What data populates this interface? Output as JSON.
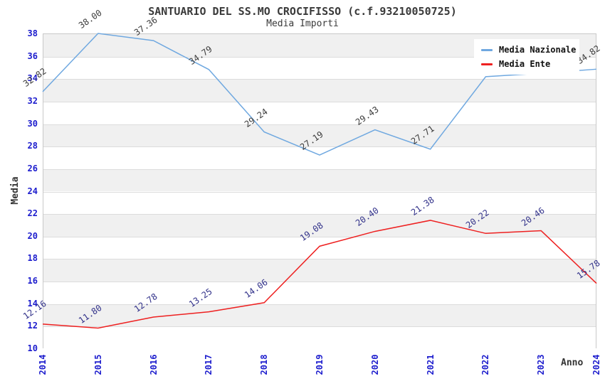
{
  "page": {
    "background": "#ffffff"
  },
  "chart_data": {
    "type": "line",
    "title": "SANTUARIO DEL SS.MO CROCIFISSO (c.f.93210050725)",
    "subtitle": "Media Importi",
    "xlabel": "Anno",
    "ylabel": "Media",
    "x_categories": [
      "2014",
      "2015",
      "2016",
      "2017",
      "2018",
      "2019",
      "2020",
      "2021",
      "2022",
      "2023",
      "2024"
    ],
    "ylim": [
      10,
      38
    ],
    "ytick_step": 2,
    "grid": true,
    "legend_position": "top-right",
    "colors": {
      "axis_tick_text": "#1c1ccd",
      "band_gray": "#f0f0f0",
      "band_white": "#ffffff",
      "gridline": "#dcdcdc",
      "plot_border": "#c9c9c9"
    },
    "series": [
      {
        "name": "Media Nazionale",
        "color": "#6fa8e0",
        "label_color": "#3c3c3c",
        "values": [
          32.82,
          38.0,
          37.36,
          34.79,
          29.24,
          27.19,
          29.43,
          27.71,
          34.15,
          34.46,
          34.82
        ],
        "point_labels": [
          "32.82",
          "38.00",
          "37.36",
          "34.79",
          "29.24",
          "27.19",
          "29.43",
          "27.71",
          null,
          null,
          "34.82"
        ]
      },
      {
        "name": "Media Ente",
        "color": "#ee2020",
        "label_color": "#32328a",
        "values": [
          12.16,
          11.8,
          12.78,
          13.25,
          14.06,
          19.08,
          20.4,
          21.38,
          20.22,
          20.46,
          15.78
        ],
        "point_labels": [
          "12.16",
          "11.80",
          "12.78",
          "13.25",
          "14.06",
          "19.08",
          "20.40",
          "21.38",
          "20.22",
          "20.46",
          "15.78"
        ]
      }
    ]
  }
}
